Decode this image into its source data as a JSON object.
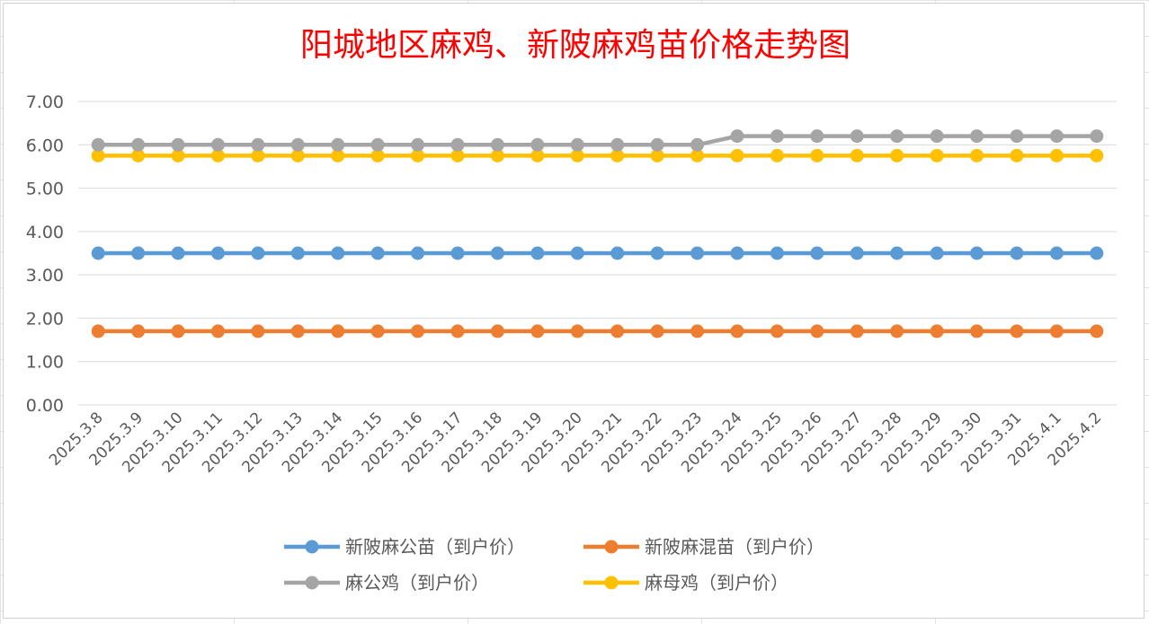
{
  "chart_data": {
    "type": "line",
    "title": "阳城地区麻鸡、新陂麻鸡苗价格走势图",
    "xlabel": "",
    "ylabel": "",
    "ylim": [
      0,
      7
    ],
    "yticks": [
      "0.00",
      "1.00",
      "2.00",
      "3.00",
      "4.00",
      "5.00",
      "6.00",
      "7.00"
    ],
    "grid": true,
    "legend_position": "bottom",
    "categories": [
      "2025.3.8",
      "2025.3.9",
      "2025.3.10",
      "2025.3.11",
      "2025.3.12",
      "2025.3.13",
      "2025.3.14",
      "2025.3.15",
      "2025.3.16",
      "2025.3.17",
      "2025.3.18",
      "2025.3.19",
      "2025.3.20",
      "2025.3.21",
      "2025.3.22",
      "2025.3.23",
      "2025.3.24",
      "2025.3.25",
      "2025.3.26",
      "2025.3.27",
      "2025.3.28",
      "2025.3.29",
      "2025.3.30",
      "2025.3.31",
      "2025.4.1",
      "2025.4.2"
    ],
    "series": [
      {
        "name": "新陂麻公苗（到户价）",
        "color": "#5b9bd5",
        "values": [
          3.5,
          3.5,
          3.5,
          3.5,
          3.5,
          3.5,
          3.5,
          3.5,
          3.5,
          3.5,
          3.5,
          3.5,
          3.5,
          3.5,
          3.5,
          3.5,
          3.5,
          3.5,
          3.5,
          3.5,
          3.5,
          3.5,
          3.5,
          3.5,
          3.5,
          3.5
        ]
      },
      {
        "name": "新陂麻混苗（到户价）",
        "color": "#ed7d31",
        "values": [
          1.7,
          1.7,
          1.7,
          1.7,
          1.7,
          1.7,
          1.7,
          1.7,
          1.7,
          1.7,
          1.7,
          1.7,
          1.7,
          1.7,
          1.7,
          1.7,
          1.7,
          1.7,
          1.7,
          1.7,
          1.7,
          1.7,
          1.7,
          1.7,
          1.7,
          1.7
        ]
      },
      {
        "name": "麻公鸡（到户价）",
        "color": "#a5a5a5",
        "values": [
          6.0,
          6.0,
          6.0,
          6.0,
          6.0,
          6.0,
          6.0,
          6.0,
          6.0,
          6.0,
          6.0,
          6.0,
          6.0,
          6.0,
          6.0,
          6.0,
          6.2,
          6.2,
          6.2,
          6.2,
          6.2,
          6.2,
          6.2,
          6.2,
          6.2,
          6.2
        ]
      },
      {
        "name": "麻母鸡（到户价）",
        "color": "#ffc000",
        "values": [
          5.75,
          5.75,
          5.75,
          5.75,
          5.75,
          5.75,
          5.75,
          5.75,
          5.75,
          5.75,
          5.75,
          5.75,
          5.75,
          5.75,
          5.75,
          5.75,
          5.75,
          5.75,
          5.75,
          5.75,
          5.75,
          5.75,
          5.75,
          5.75,
          5.75,
          5.75
        ]
      }
    ]
  }
}
